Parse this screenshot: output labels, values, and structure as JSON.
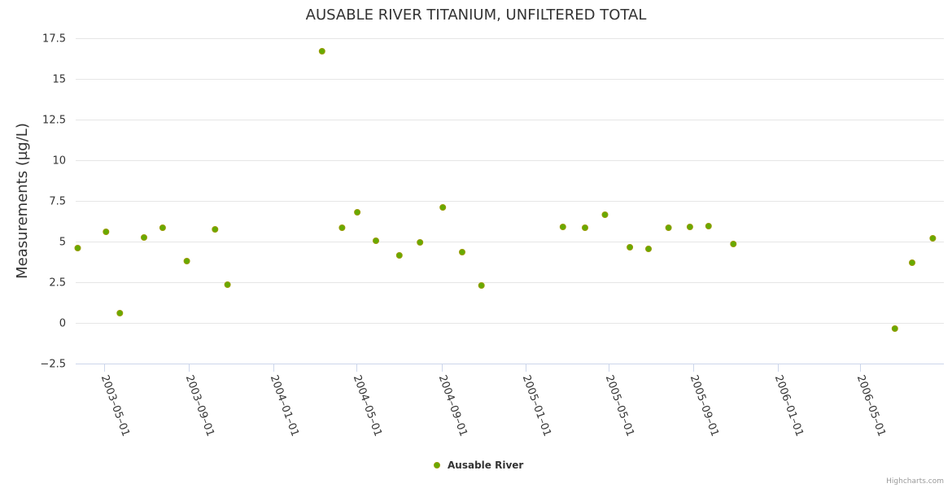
{
  "chart_data": {
    "type": "scatter",
    "title": "AUSABLE RIVER TITANIUM, UNFILTERED TOTAL",
    "xlabel": "",
    "ylabel": "Measurements (µg/L)",
    "ylim": [
      -2.5,
      17.5
    ],
    "yticks": [
      -2.5,
      0,
      2.5,
      5,
      7.5,
      10,
      12.5,
      15,
      17.5
    ],
    "ytick_labels": [
      "−2.5",
      "0",
      "2.5",
      "5",
      "7.5",
      "10",
      "12.5",
      "15",
      "17.5"
    ],
    "xlim": [
      "2003-03-21",
      "2006-08-30"
    ],
    "xticks": [
      "2003-05-01",
      "2003-09-01",
      "2004-01-01",
      "2004-05-01",
      "2004-09-01",
      "2005-01-01",
      "2005-05-01",
      "2005-09-01",
      "2006-01-01",
      "2006-05-01"
    ],
    "xtick_labels": [
      "2003–05–01",
      "2003–09–01",
      "2004–01–01",
      "2004–05–01",
      "2004–09–01",
      "2005–01–01",
      "2005–05–01",
      "2005–09–01",
      "2006–01–01",
      "2006–05–01"
    ],
    "grid": true,
    "legend_position": "bottom-center",
    "series": [
      {
        "name": "Ausable River",
        "color": "#7cb5ec",
        "marker_fill": "#66aa00",
        "marker_stroke": "#999900",
        "points": [
          {
            "x": "2003-03-24",
            "y": 4.6
          },
          {
            "x": "2003-05-04",
            "y": 5.6
          },
          {
            "x": "2003-05-24",
            "y": 0.6
          },
          {
            "x": "2003-06-28",
            "y": 5.25
          },
          {
            "x": "2003-07-25",
            "y": 5.85
          },
          {
            "x": "2003-08-29",
            "y": 3.8
          },
          {
            "x": "2003-10-09",
            "y": 5.75
          },
          {
            "x": "2003-10-27",
            "y": 2.35
          },
          {
            "x": "2004-03-12",
            "y": 16.7
          },
          {
            "x": "2004-04-10",
            "y": 5.85
          },
          {
            "x": "2004-05-02",
            "y": 6.8
          },
          {
            "x": "2004-05-29",
            "y": 5.05
          },
          {
            "x": "2004-07-02",
            "y": 4.15
          },
          {
            "x": "2004-08-01",
            "y": 4.95
          },
          {
            "x": "2004-09-03",
            "y": 7.1
          },
          {
            "x": "2004-10-01",
            "y": 4.35
          },
          {
            "x": "2004-10-29",
            "y": 2.3
          },
          {
            "x": "2005-02-24",
            "y": 5.9
          },
          {
            "x": "2005-03-28",
            "y": 5.85
          },
          {
            "x": "2005-04-26",
            "y": 6.65
          },
          {
            "x": "2005-06-01",
            "y": 4.65
          },
          {
            "x": "2005-06-28",
            "y": 4.55
          },
          {
            "x": "2005-07-27",
            "y": 5.85
          },
          {
            "x": "2005-08-27",
            "y": 5.9
          },
          {
            "x": "2005-09-23",
            "y": 5.95
          },
          {
            "x": "2005-10-29",
            "y": 4.85
          },
          {
            "x": "2006-06-20",
            "y": -0.35
          },
          {
            "x": "2006-07-15",
            "y": 3.7
          },
          {
            "x": "2006-08-14",
            "y": 5.2
          }
        ]
      }
    ]
  },
  "credits": "Highcharts.com"
}
